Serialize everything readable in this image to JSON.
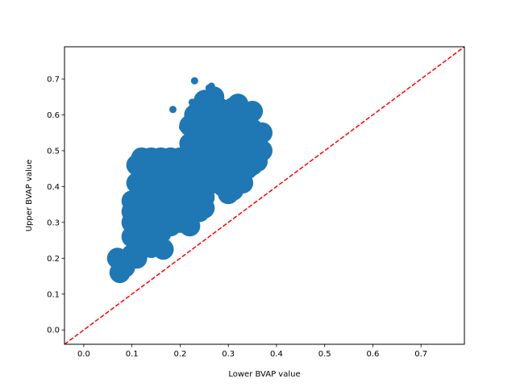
{
  "chart_data": {
    "type": "scatter",
    "xlabel": "Lower BVAP value",
    "ylabel": "Upper BVAP value",
    "xlim": [
      -0.04,
      0.79
    ],
    "ylim": [
      -0.04,
      0.79
    ],
    "xticks": [
      "0.0",
      "0.1",
      "0.2",
      "0.3",
      "0.4",
      "0.5",
      "0.6",
      "0.7"
    ],
    "yticks": [
      "0.0",
      "0.1",
      "0.2",
      "0.3",
      "0.4",
      "0.5",
      "0.6",
      "0.7"
    ],
    "grid": false,
    "point_color": "#1f77b4",
    "reference_line": {
      "style": "dashed",
      "color": "#ff0000",
      "x": [
        -0.04,
        0.79
      ],
      "y": [
        -0.04,
        0.79
      ]
    },
    "points_core": [
      [
        0.07,
        0.2
      ],
      [
        0.09,
        0.19
      ],
      [
        0.085,
        0.175
      ],
      [
        0.075,
        0.16
      ],
      [
        0.1,
        0.21
      ],
      [
        0.11,
        0.2
      ],
      [
        0.1,
        0.26
      ],
      [
        0.1,
        0.3
      ],
      [
        0.1,
        0.33
      ],
      [
        0.1,
        0.36
      ],
      [
        0.11,
        0.41
      ],
      [
        0.11,
        0.46
      ],
      [
        0.12,
        0.48
      ],
      [
        0.12,
        0.33
      ],
      [
        0.12,
        0.28
      ],
      [
        0.12,
        0.23
      ],
      [
        0.13,
        0.43
      ],
      [
        0.13,
        0.36
      ],
      [
        0.13,
        0.3
      ],
      [
        0.13,
        0.25
      ],
      [
        0.14,
        0.48
      ],
      [
        0.14,
        0.45
      ],
      [
        0.14,
        0.41
      ],
      [
        0.14,
        0.35
      ],
      [
        0.14,
        0.29
      ],
      [
        0.14,
        0.23
      ],
      [
        0.15,
        0.47
      ],
      [
        0.15,
        0.42
      ],
      [
        0.15,
        0.37
      ],
      [
        0.15,
        0.31
      ],
      [
        0.15,
        0.26
      ],
      [
        0.16,
        0.48
      ],
      [
        0.16,
        0.43
      ],
      [
        0.16,
        0.38
      ],
      [
        0.16,
        0.33
      ],
      [
        0.16,
        0.27
      ],
      [
        0.165,
        0.225
      ],
      [
        0.17,
        0.46
      ],
      [
        0.17,
        0.41
      ],
      [
        0.17,
        0.36
      ],
      [
        0.17,
        0.3
      ],
      [
        0.18,
        0.48
      ],
      [
        0.18,
        0.44
      ],
      [
        0.18,
        0.39
      ],
      [
        0.18,
        0.34
      ],
      [
        0.18,
        0.29
      ],
      [
        0.19,
        0.47
      ],
      [
        0.19,
        0.42
      ],
      [
        0.19,
        0.37
      ],
      [
        0.19,
        0.32
      ],
      [
        0.2,
        0.48
      ],
      [
        0.2,
        0.44
      ],
      [
        0.2,
        0.39
      ],
      [
        0.2,
        0.34
      ],
      [
        0.2,
        0.3
      ],
      [
        0.21,
        0.46
      ],
      [
        0.21,
        0.41
      ],
      [
        0.21,
        0.36
      ],
      [
        0.21,
        0.31
      ],
      [
        0.22,
        0.43
      ],
      [
        0.22,
        0.38
      ],
      [
        0.22,
        0.33
      ],
      [
        0.22,
        0.29
      ],
      [
        0.23,
        0.44
      ],
      [
        0.23,
        0.4
      ],
      [
        0.23,
        0.35
      ],
      [
        0.24,
        0.45
      ],
      [
        0.24,
        0.41
      ],
      [
        0.24,
        0.37
      ],
      [
        0.24,
        0.33
      ],
      [
        0.25,
        0.46
      ],
      [
        0.25,
        0.42
      ],
      [
        0.25,
        0.37
      ],
      [
        0.25,
        0.34
      ],
      [
        0.22,
        0.52
      ],
      [
        0.22,
        0.57
      ],
      [
        0.23,
        0.5
      ],
      [
        0.23,
        0.55
      ],
      [
        0.23,
        0.6
      ],
      [
        0.24,
        0.52
      ],
      [
        0.24,
        0.57
      ],
      [
        0.24,
        0.62
      ],
      [
        0.25,
        0.5
      ],
      [
        0.25,
        0.55
      ],
      [
        0.25,
        0.6
      ],
      [
        0.25,
        0.64
      ],
      [
        0.26,
        0.42
      ],
      [
        0.26,
        0.47
      ],
      [
        0.26,
        0.52
      ],
      [
        0.26,
        0.57
      ],
      [
        0.26,
        0.62
      ],
      [
        0.27,
        0.41
      ],
      [
        0.27,
        0.46
      ],
      [
        0.27,
        0.51
      ],
      [
        0.27,
        0.56
      ],
      [
        0.27,
        0.61
      ],
      [
        0.27,
        0.65
      ],
      [
        0.28,
        0.42
      ],
      [
        0.28,
        0.47
      ],
      [
        0.28,
        0.52
      ],
      [
        0.28,
        0.57
      ],
      [
        0.28,
        0.62
      ],
      [
        0.29,
        0.4
      ],
      [
        0.29,
        0.45
      ],
      [
        0.29,
        0.5
      ],
      [
        0.29,
        0.55
      ],
      [
        0.29,
        0.6
      ],
      [
        0.3,
        0.41
      ],
      [
        0.3,
        0.46
      ],
      [
        0.3,
        0.51
      ],
      [
        0.3,
        0.56
      ],
      [
        0.3,
        0.61
      ],
      [
        0.31,
        0.42
      ],
      [
        0.31,
        0.47
      ],
      [
        0.31,
        0.52
      ],
      [
        0.31,
        0.57
      ],
      [
        0.31,
        0.62
      ],
      [
        0.32,
        0.43
      ],
      [
        0.32,
        0.48
      ],
      [
        0.32,
        0.53
      ],
      [
        0.32,
        0.58
      ],
      [
        0.32,
        0.63
      ],
      [
        0.33,
        0.44
      ],
      [
        0.33,
        0.49
      ],
      [
        0.33,
        0.54
      ],
      [
        0.33,
        0.59
      ],
      [
        0.34,
        0.45
      ],
      [
        0.34,
        0.5
      ],
      [
        0.34,
        0.55
      ],
      [
        0.34,
        0.6
      ],
      [
        0.35,
        0.46
      ],
      [
        0.35,
        0.51
      ],
      [
        0.35,
        0.56
      ],
      [
        0.36,
        0.48
      ],
      [
        0.36,
        0.53
      ],
      [
        0.37,
        0.55
      ],
      [
        0.37,
        0.5
      ],
      [
        0.35,
        0.61
      ],
      [
        0.3,
        0.38
      ],
      [
        0.31,
        0.39
      ],
      [
        0.33,
        0.41
      ],
      [
        0.36,
        0.47
      ]
    ],
    "points_outliers": [
      [
        0.23,
        0.695
      ],
      [
        0.26,
        0.675
      ],
      [
        0.265,
        0.68
      ],
      [
        0.185,
        0.615
      ],
      [
        0.25,
        0.66
      ],
      [
        0.225,
        0.635
      ],
      [
        0.325,
        0.64
      ],
      [
        0.31,
        0.63
      ],
      [
        0.205,
        0.565
      ],
      [
        0.22,
        0.58
      ]
    ]
  }
}
